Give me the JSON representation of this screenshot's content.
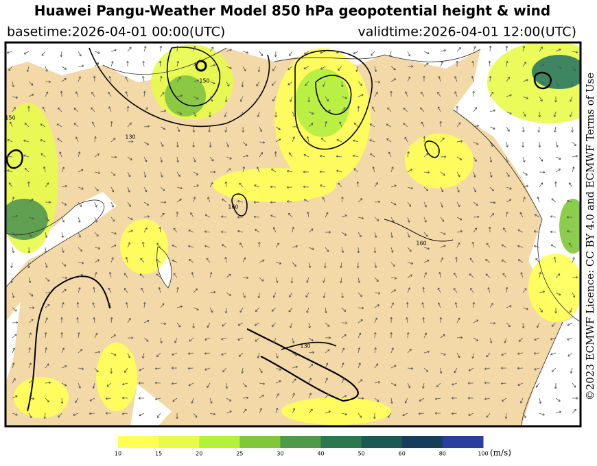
{
  "header": {
    "title": "Huawei Pangu-Weather Model 850 hPa geopotential height & wind",
    "basetime": "basetime:2026-04-01 00:00(UTC)",
    "validtime": "validtime:2026-04-01 12:00(UTC)"
  },
  "side": {
    "licence": "©2023 ECMWF Licence: CC BY 4.0 and ECMWF Terms of Use"
  },
  "contour_labels": [
    150,
    130,
    150,
    160,
    160,
    130
  ],
  "colorbar": {
    "ticks": [
      10,
      15,
      20,
      25,
      30,
      40,
      50,
      60,
      80,
      100
    ],
    "colors": [
      "#ffff55",
      "#e8fb4a",
      "#b4f23a",
      "#80c83a",
      "#4f9a48",
      "#2a7850",
      "#1a5a52",
      "#163e5a",
      "#2a3ea0"
    ],
    "unit": "(m/s)"
  }
}
